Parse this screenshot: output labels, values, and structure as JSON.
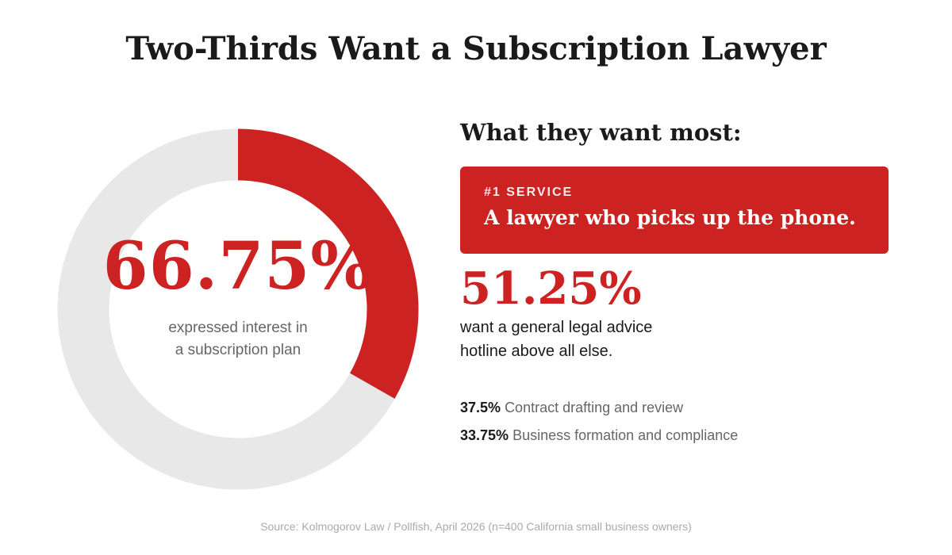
{
  "title": "Two-Thirds Want a Subscription Lawyer",
  "donut": {
    "value_percent": 66.75,
    "value_label": "66.75%",
    "caption_line1": "expressed interest in",
    "caption_line2": "a subscription plan",
    "fill_color": "#cc2222",
    "track_color": "#e8e8e8"
  },
  "wants": {
    "heading": "What they want most:",
    "top_service": {
      "tag": "#1 SERVICE",
      "text": "A lawyer who picks up the phone."
    },
    "hotline": {
      "value_label": "51.25%",
      "desc_line1": "want a general legal advice",
      "desc_line2": "hotline above all else."
    },
    "others": [
      {
        "value": "37.5%",
        "label": "Contract drafting and review"
      },
      {
        "value": "33.75%",
        "label": "Business formation and compliance"
      }
    ]
  },
  "source": "Source: Kolmogorov Law / Pollfish, April 2026 (n=400 California small business owners)"
}
